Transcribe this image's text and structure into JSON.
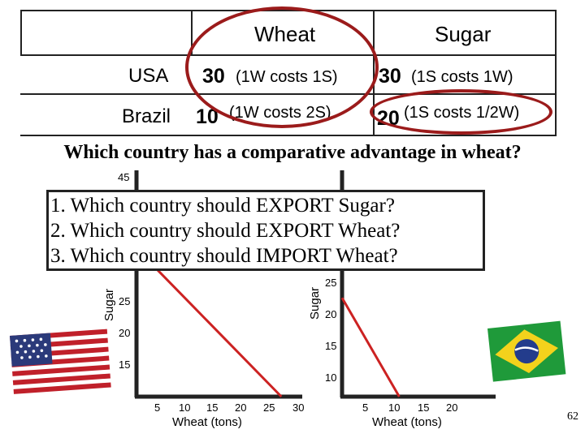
{
  "table": {
    "headers": [
      "Wheat",
      "Sugar"
    ],
    "rows": [
      {
        "country": "USA",
        "wheat_value": "30",
        "wheat_note": "(1W costs 1S)",
        "sugar_value": "30",
        "sugar_note": "(1S costs 1W)"
      },
      {
        "country": "Brazil",
        "wheat_value": "10",
        "wheat_note": "(1W costs 2S)",
        "sugar_value": "20",
        "sugar_note": "(1S costs 1/2W)"
      }
    ]
  },
  "question_main": "Which country has a comparative advantage in wheat?",
  "questions": [
    "1.  Which country should EXPORT Sugar?",
    "2.  Which country should EXPORT Wheat?",
    "3.  Which country should IMPORT Wheat?"
  ],
  "colors": {
    "ring": "#9b1b1b",
    "line": "#cc2222",
    "axis": "#222222"
  },
  "icons": [
    "usa-flag-icon",
    "brazil-flag-icon"
  ],
  "chart_data": [
    {
      "type": "line",
      "country": "USA",
      "xlabel": "Wheat (tons)",
      "ylabel": "Sugar",
      "x_ticks": [
        5,
        10,
        15,
        20,
        25,
        30
      ],
      "y_ticks_visible": [
        45,
        25,
        20,
        15
      ],
      "x": [
        0,
        30
      ],
      "y": [
        30,
        0
      ],
      "xlim": [
        0,
        35
      ],
      "ylim": [
        0,
        45
      ]
    },
    {
      "type": "line",
      "country": "Brazil",
      "xlabel": "Wheat (tons)",
      "ylabel": "Sugar",
      "x_ticks": [
        5,
        10,
        15,
        20
      ],
      "y_ticks_visible": [
        25,
        20,
        15,
        10
      ],
      "x": [
        0,
        10
      ],
      "y": [
        20,
        0
      ],
      "xlim": [
        0,
        25
      ],
      "ylim": [
        0,
        45
      ]
    }
  ],
  "page_number": "62"
}
